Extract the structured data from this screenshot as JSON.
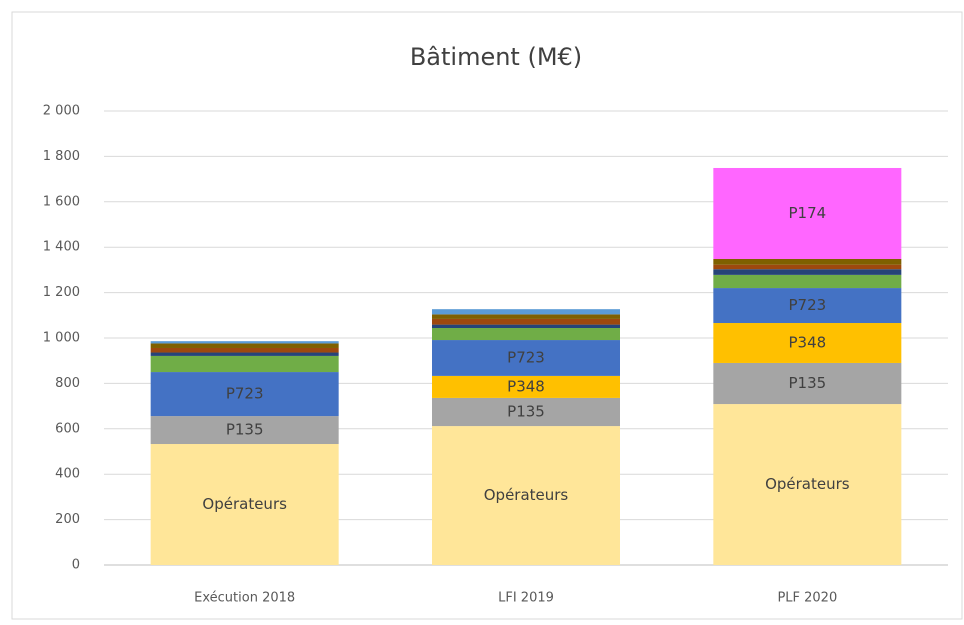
{
  "chart_data": {
    "type": "stacked_bar",
    "title": "Bâtiment (M€)",
    "categories": [
      "Exécution 2018",
      "LFI 2019",
      "PLF 2020"
    ],
    "series": [
      {
        "name": "Opérateurs",
        "color": "#ffe699",
        "values": [
          533,
          612,
          709
        ]
      },
      {
        "name": "P135",
        "color": "#a5a5a5",
        "values": [
          123,
          124,
          181
        ]
      },
      {
        "name": "P348",
        "color": "#ffc000",
        "values": [
          0,
          97,
          176
        ]
      },
      {
        "name": "P723",
        "color": "#4472c4",
        "values": [
          194,
          158,
          154
        ]
      },
      {
        "color": "#70ad47",
        "values": [
          71,
          53,
          58
        ]
      },
      {
        "color": "#264478",
        "values": [
          15,
          15,
          25
        ]
      },
      {
        "color": "#9e480e",
        "values": [
          20,
          25,
          20
        ]
      },
      {
        "color": "#7f6000",
        "values": [
          20,
          20,
          25
        ]
      },
      {
        "color": "#5b9bd5",
        "values": [
          10,
          23,
          0
        ]
      },
      {
        "name": "P174",
        "color": "#ff66ff",
        "values": [
          0,
          0,
          401
        ]
      }
    ],
    "ylim": [
      0,
      2000
    ],
    "yticks": [
      0,
      200,
      400,
      600,
      800,
      {
        "value": 1000,
        "label": "1 000"
      },
      {
        "value": 1200,
        "label": "1 200"
      },
      {
        "value": 1400,
        "label": "1 400"
      },
      {
        "value": 1600,
        "label": "1 600"
      },
      {
        "value": 1800,
        "label": "1 800"
      },
      {
        "value": 2000,
        "label": "2 000"
      }
    ],
    "grid": true
  }
}
